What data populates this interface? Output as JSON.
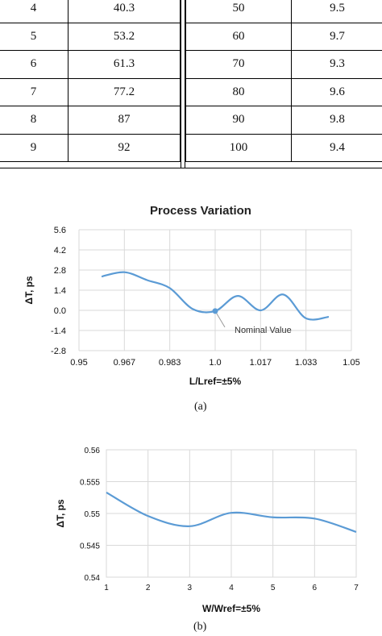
{
  "table": {
    "left": [
      [
        "4",
        "40.3"
      ],
      [
        "5",
        "53.2"
      ],
      [
        "6",
        "61.3"
      ],
      [
        "7",
        "77.2"
      ],
      [
        "8",
        "87"
      ],
      [
        "9",
        "92"
      ]
    ],
    "right": [
      [
        "50",
        "9.5"
      ],
      [
        "60",
        "9.7"
      ],
      [
        "70",
        "9.3"
      ],
      [
        "80",
        "9.6"
      ],
      [
        "90",
        "9.8"
      ],
      [
        "100",
        "9.4"
      ]
    ]
  },
  "chart_data": [
    {
      "type": "line",
      "title": "Process Variation",
      "xlabel": "L/Lref=±5%",
      "ylabel": "ΔT, ps",
      "xlim": [
        0.95,
        1.05
      ],
      "ylim": [
        -2.8,
        5.6
      ],
      "xticks": [
        "0.95",
        "0.967",
        "0.983",
        "1.0",
        "1.017",
        "1.033",
        "1.05"
      ],
      "yticks": [
        "5.6",
        "4.2",
        "2.8",
        "1.4",
        "0.0",
        "-1.4",
        "-2.8"
      ],
      "grid": true,
      "color": "#5b9bd5",
      "series": [
        {
          "x": [
            0.9583,
            0.9667,
            0.975,
            0.9833,
            0.9917,
            1.0,
            1.0083,
            1.0167,
            1.025,
            1.0333,
            1.0417
          ],
          "y": [
            2.35,
            2.65,
            2.1,
            1.55,
            0.1,
            -0.05,
            1.0,
            0.0,
            1.1,
            -0.55,
            -0.45
          ]
        }
      ],
      "annotation": {
        "text": "Nominal Value",
        "x": 1.0,
        "y": -0.05
      }
    },
    {
      "type": "line",
      "title": "",
      "xlabel": "W/Wref=±5%",
      "ylabel": "ΔT, ps",
      "xlim": [
        1,
        7
      ],
      "ylim": [
        0.54,
        0.56
      ],
      "xticks": [
        "1",
        "2",
        "3",
        "4",
        "5",
        "6",
        "7"
      ],
      "yticks": [
        "0.56",
        "0.555",
        "0.55",
        "0.545",
        "0.54"
      ],
      "grid": true,
      "color": "#5b9bd5",
      "series": [
        {
          "x": [
            1,
            2,
            3,
            4,
            5,
            6,
            7
          ],
          "y": [
            0.5533,
            0.5496,
            0.548,
            0.5501,
            0.5494,
            0.5492,
            0.5471
          ]
        }
      ]
    }
  ],
  "captions": {
    "a": "(a)",
    "b": "(b)"
  }
}
